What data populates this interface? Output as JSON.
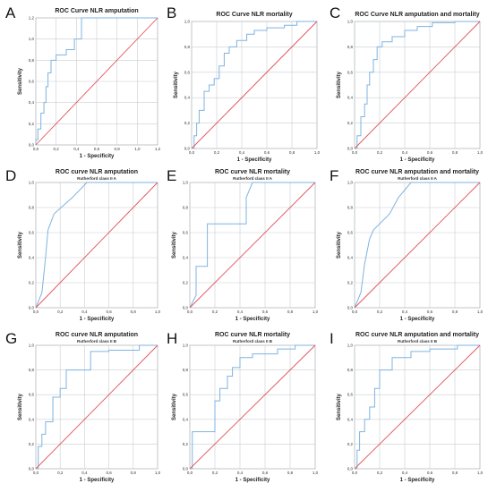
{
  "colors": {
    "roc": "#7fb3e0",
    "reference": "#e0525a",
    "grid": "#c9cdd2",
    "frame": "#9aa0a6"
  },
  "chart_data": [
    {
      "type": "line",
      "panel": "A",
      "title": "ROC Curve NLR amputation",
      "subtitle": "",
      "xlabel": "1 - Specificity",
      "ylabel": "Sensitivity",
      "xticks": [
        "0,0",
        "0,2",
        "0,4",
        "0,6",
        "0,8",
        "1,0",
        "1,2"
      ],
      "yticks": [
        "0,0",
        "0,2",
        "0,4",
        "0,6",
        "0,8",
        "1,0",
        "1,2"
      ],
      "xlim": [
        0,
        1.2
      ],
      "ylim": [
        0,
        1.2
      ],
      "series": [
        {
          "kind": "roc",
          "x": [
            0,
            0,
            0.02,
            0.02,
            0.05,
            0.05,
            0.08,
            0.08,
            0.1,
            0.1,
            0.12,
            0.12,
            0.15,
            0.15,
            0.2,
            0.2,
            0.3,
            0.3,
            0.38,
            0.38,
            0.45,
            0.45,
            1.2
          ],
          "y": [
            0,
            0.05,
            0.05,
            0.15,
            0.15,
            0.3,
            0.3,
            0.4,
            0.4,
            0.55,
            0.55,
            0.68,
            0.68,
            0.8,
            0.8,
            0.85,
            0.85,
            0.9,
            0.9,
            1.0,
            1.0,
            1.2,
            1.2
          ]
        },
        {
          "kind": "reference",
          "x": [
            0,
            1.2
          ],
          "y": [
            0,
            1.2
          ]
        }
      ]
    },
    {
      "type": "line",
      "panel": "B",
      "title": "ROC Curve NLR mortality",
      "subtitle": "",
      "xlabel": "1 - Specificity",
      "ylabel": "Sensitivity",
      "xticks": [
        "0,0",
        "0,2",
        "0,4",
        "0,6",
        "0,8",
        "1,0"
      ],
      "yticks": [
        "0,0",
        "0,2",
        "0,4",
        "0,6",
        "0,8",
        "1,0"
      ],
      "xlim": [
        0,
        1
      ],
      "ylim": [
        0,
        1
      ],
      "series": [
        {
          "kind": "roc",
          "x": [
            0,
            0.02,
            0.02,
            0.04,
            0.04,
            0.06,
            0.06,
            0.1,
            0.1,
            0.14,
            0.14,
            0.18,
            0.18,
            0.22,
            0.22,
            0.26,
            0.26,
            0.3,
            0.3,
            0.36,
            0.36,
            0.44,
            0.44,
            0.5,
            0.5,
            0.6,
            0.6,
            0.74,
            0.74,
            0.84,
            0.84,
            1.0
          ],
          "y": [
            0,
            0,
            0.1,
            0.1,
            0.2,
            0.2,
            0.3,
            0.3,
            0.45,
            0.45,
            0.5,
            0.5,
            0.55,
            0.55,
            0.65,
            0.65,
            0.75,
            0.75,
            0.8,
            0.8,
            0.85,
            0.85,
            0.9,
            0.9,
            0.93,
            0.93,
            0.95,
            0.95,
            0.97,
            0.97,
            1.0,
            1.0
          ]
        },
        {
          "kind": "reference",
          "x": [
            0,
            1
          ],
          "y": [
            0,
            1
          ]
        }
      ]
    },
    {
      "type": "line",
      "panel": "C",
      "title": "ROC Curve NLR amputation and mortality",
      "subtitle": "",
      "xlabel": "1 - Specificity",
      "ylabel": "Sensitivity",
      "xticks": [
        "0,0",
        "0,2",
        "0,4",
        "0,6",
        "0,8",
        "1,0"
      ],
      "yticks": [
        "0,0",
        "0,2",
        "0,4",
        "0,6",
        "0,8",
        "1,0"
      ],
      "xlim": [
        0,
        1
      ],
      "ylim": [
        0,
        1
      ],
      "series": [
        {
          "kind": "roc",
          "x": [
            0,
            0.02,
            0.02,
            0.05,
            0.05,
            0.08,
            0.08,
            0.1,
            0.1,
            0.12,
            0.12,
            0.15,
            0.15,
            0.18,
            0.18,
            0.22,
            0.22,
            0.3,
            0.3,
            0.4,
            0.4,
            0.5,
            0.5,
            0.62,
            0.62,
            0.8,
            0.8,
            1.0
          ],
          "y": [
            0,
            0,
            0.1,
            0.1,
            0.25,
            0.25,
            0.35,
            0.35,
            0.5,
            0.5,
            0.6,
            0.6,
            0.7,
            0.7,
            0.8,
            0.8,
            0.84,
            0.84,
            0.88,
            0.88,
            0.93,
            0.93,
            0.96,
            0.96,
            0.99,
            0.99,
            1.0,
            1.0
          ]
        },
        {
          "kind": "reference",
          "x": [
            0,
            1
          ],
          "y": [
            0,
            1
          ]
        }
      ]
    },
    {
      "type": "line",
      "panel": "D",
      "title": "ROC curve NLR amputation",
      "subtitle": "Rutherford class II A",
      "xlabel": "1 - Specificity",
      "ylabel": "Sensitivity",
      "xticks": [
        "0,0",
        "0,2",
        "0,4",
        "0,6",
        "0,8",
        "1,0"
      ],
      "yticks": [
        "0,0",
        "0,2",
        "0,4",
        "0,6",
        "0,8",
        "1,0"
      ],
      "xlim": [
        0,
        1
      ],
      "ylim": [
        0,
        1
      ],
      "series": [
        {
          "kind": "roc",
          "x": [
            0,
            0.05,
            0.05,
            0.08,
            0.08,
            0.1,
            0.1,
            0.15,
            0.15,
            0.3,
            0.3,
            0.42,
            0.42,
            1.0
          ],
          "y": [
            0,
            0.12,
            0.12,
            0.4,
            0.4,
            0.62,
            0.62,
            0.75,
            0.75,
            0.88,
            0.88,
            1.0,
            1.0,
            1.0
          ]
        },
        {
          "kind": "reference",
          "x": [
            0,
            1
          ],
          "y": [
            0,
            1
          ]
        }
      ]
    },
    {
      "type": "line",
      "panel": "E",
      "title": "ROC curve NLR mortality",
      "subtitle": "Rutherford class II A",
      "xlabel": "1 - Specificity",
      "ylabel": "Sensitivity",
      "xticks": [
        "0,0",
        "0,2",
        "0,4",
        "0,6",
        "0,8",
        "1,0"
      ],
      "yticks": [
        "0,0",
        "0,2",
        "0,4",
        "0,6",
        "0,8",
        "1,0"
      ],
      "xlim": [
        0,
        1
      ],
      "ylim": [
        0,
        1
      ],
      "series": [
        {
          "kind": "roc",
          "x": [
            0,
            0.05,
            0.05,
            0.14,
            0.14,
            0.45,
            0.45,
            0.5,
            0.5,
            1.0
          ],
          "y": [
            0,
            0.1,
            0.33,
            0.33,
            0.67,
            0.67,
            0.88,
            1.0,
            1.0,
            1.0
          ]
        },
        {
          "kind": "reference",
          "x": [
            0,
            1
          ],
          "y": [
            0,
            1
          ]
        }
      ]
    },
    {
      "type": "line",
      "panel": "F",
      "title": "ROC curve NLR amputation and mortality",
      "subtitle": "Rutherford class II A",
      "xlabel": "1 - Specificity",
      "ylabel": "Sensitivity",
      "xticks": [
        "0,0",
        "0,2",
        "0,4",
        "0,6",
        "0,8",
        "1,0"
      ],
      "yticks": [
        "0,0",
        "0,2",
        "0,4",
        "0,6",
        "0,8",
        "1,0"
      ],
      "xlim": [
        0,
        1
      ],
      "ylim": [
        0,
        1
      ],
      "series": [
        {
          "kind": "roc",
          "x": [
            0,
            0.05,
            0.05,
            0.08,
            0.08,
            0.12,
            0.12,
            0.15,
            0.15,
            0.28,
            0.28,
            0.35,
            0.35,
            0.45,
            0.45,
            1.0
          ],
          "y": [
            0,
            0.12,
            0.12,
            0.35,
            0.35,
            0.55,
            0.55,
            0.62,
            0.62,
            0.75,
            0.75,
            0.88,
            0.88,
            1.0,
            1.0,
            1.0
          ]
        },
        {
          "kind": "reference",
          "x": [
            0,
            1
          ],
          "y": [
            0,
            1
          ]
        }
      ]
    },
    {
      "type": "line",
      "panel": "G",
      "title": "ROC curve NLR amputation",
      "subtitle": "Rutherford class II B",
      "xlabel": "1 - Specificity",
      "ylabel": "Sensitivity",
      "xticks": [
        "0,0",
        "0,2",
        "0,4",
        "0,6",
        "0,8",
        "1,0"
      ],
      "yticks": [
        "0,0",
        "0,2",
        "0,4",
        "0,6",
        "0,8",
        "1,0"
      ],
      "xlim": [
        0,
        1
      ],
      "ylim": [
        0,
        1
      ],
      "series": [
        {
          "kind": "roc",
          "x": [
            0,
            0.02,
            0.02,
            0.05,
            0.05,
            0.08,
            0.08,
            0.14,
            0.14,
            0.2,
            0.2,
            0.25,
            0.25,
            0.45,
            0.45,
            0.6,
            0.6,
            0.85,
            0.85,
            1.0
          ],
          "y": [
            0,
            0,
            0.18,
            0.18,
            0.28,
            0.28,
            0.38,
            0.38,
            0.58,
            0.58,
            0.65,
            0.65,
            0.8,
            0.8,
            0.95,
            0.95,
            0.96,
            0.96,
            1.0,
            1.0
          ]
        },
        {
          "kind": "reference",
          "x": [
            0,
            1
          ],
          "y": [
            0,
            1
          ]
        }
      ]
    },
    {
      "type": "line",
      "panel": "H",
      "title": "ROC curve NLR mortality",
      "subtitle": "Rutherford class II B",
      "xlabel": "1 - Specificity",
      "ylabel": "Sensitivity",
      "xticks": [
        "0,0",
        "0,2",
        "0,4",
        "0,6",
        "0,8",
        "1,0"
      ],
      "yticks": [
        "0,0",
        "0,2",
        "0,4",
        "0,6",
        "0,8",
        "1,0"
      ],
      "xlim": [
        0,
        1
      ],
      "ylim": [
        0,
        1
      ],
      "series": [
        {
          "kind": "roc",
          "x": [
            0,
            0.02,
            0.02,
            0.2,
            0.2,
            0.24,
            0.24,
            0.3,
            0.3,
            0.34,
            0.34,
            0.4,
            0.4,
            0.5,
            0.5,
            0.7,
            0.7,
            0.84,
            0.84,
            1.0
          ],
          "y": [
            0,
            0,
            0.3,
            0.3,
            0.55,
            0.55,
            0.65,
            0.65,
            0.75,
            0.75,
            0.82,
            0.82,
            0.9,
            0.9,
            0.93,
            0.93,
            0.97,
            0.97,
            1.0,
            1.0
          ]
        },
        {
          "kind": "reference",
          "x": [
            0,
            1
          ],
          "y": [
            0,
            1
          ]
        }
      ]
    },
    {
      "type": "line",
      "panel": "I",
      "title": "ROC curve NLR amputation and mortality",
      "subtitle": "Rutherford class II B",
      "xlabel": "1 - Specificity",
      "ylabel": "Sensitivity",
      "xticks": [
        "0,0",
        "0,2",
        "0,4",
        "0,6",
        "0,8",
        "1,0"
      ],
      "yticks": [
        "0,0",
        "0,2",
        "0,4",
        "0,6",
        "0,8",
        "1,0"
      ],
      "xlim": [
        0,
        1
      ],
      "ylim": [
        0,
        1
      ],
      "series": [
        {
          "kind": "roc",
          "x": [
            0,
            0.02,
            0.02,
            0.04,
            0.04,
            0.08,
            0.08,
            0.12,
            0.12,
            0.16,
            0.16,
            0.2,
            0.2,
            0.3,
            0.3,
            0.45,
            0.45,
            0.6,
            0.6,
            0.82,
            0.82,
            1.0
          ],
          "y": [
            0,
            0,
            0.15,
            0.15,
            0.3,
            0.3,
            0.4,
            0.4,
            0.5,
            0.5,
            0.65,
            0.65,
            0.8,
            0.8,
            0.9,
            0.9,
            0.95,
            0.95,
            0.97,
            0.97,
            1.0,
            1.0
          ]
        },
        {
          "kind": "reference",
          "x": [
            0,
            1
          ],
          "y": [
            0,
            1
          ]
        }
      ]
    }
  ]
}
